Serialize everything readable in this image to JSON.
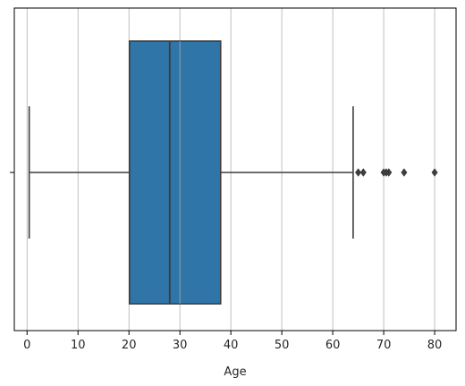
{
  "chart_data": {
    "type": "box",
    "orientation": "horizontal",
    "xlabel": "Age",
    "ylabel": "",
    "xlim": [
      -2.5,
      84.2
    ],
    "xticks": [
      0,
      10,
      20,
      30,
      40,
      50,
      60,
      70,
      80
    ],
    "xtick_labels": [
      "0",
      "10",
      "20",
      "30",
      "40",
      "50",
      "60",
      "70",
      "80"
    ],
    "grid": "vertical",
    "box": {
      "whisker_low": 0.42,
      "q1": 20.1,
      "median": 28,
      "q3": 38,
      "whisker_high": 64
    },
    "outliers": [
      65,
      66,
      70,
      70.5,
      71,
      74,
      80
    ],
    "colors": {
      "box_fill": "#2f75a8",
      "box_edge": "#3d3d3d",
      "grid": "#b0b0b0",
      "axis": "#000000"
    }
  }
}
